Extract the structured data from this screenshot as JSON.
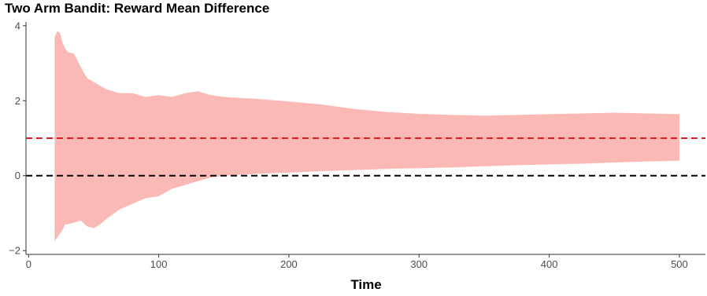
{
  "chart_data": {
    "type": "area",
    "title": "Two Arm Bandit: Reward Mean Difference",
    "xlabel": "Time",
    "ylabel": "",
    "xlim": [
      -2,
      520
    ],
    "ylim": [
      -2.1,
      4.1
    ],
    "x_ticks": [
      0,
      100,
      200,
      300,
      400,
      500
    ],
    "y_ticks": [
      -2,
      0,
      2,
      4
    ],
    "grid": false,
    "colors": {
      "band": "#fbb9b5",
      "true_difference_line": "#e41a1c",
      "zero_line": "#000000",
      "axis": "#333333"
    },
    "reference_lines": [
      {
        "y": 1,
        "style": "dashed",
        "color": "#e41a1c"
      },
      {
        "y": 0,
        "style": "dashed",
        "color": "#000000"
      }
    ],
    "band": {
      "x": [
        20,
        22,
        24,
        26,
        28,
        30,
        35,
        40,
        45,
        50,
        55,
        60,
        70,
        80,
        90,
        100,
        110,
        120,
        130,
        140,
        150,
        175,
        200,
        225,
        250,
        275,
        300,
        325,
        350,
        375,
        400,
        425,
        450,
        475,
        500
      ],
      "upper": [
        3.7,
        3.85,
        3.82,
        3.55,
        3.4,
        3.3,
        3.25,
        2.9,
        2.6,
        2.5,
        2.4,
        2.3,
        2.2,
        2.2,
        2.1,
        2.15,
        2.1,
        2.2,
        2.25,
        2.15,
        2.1,
        2.05,
        1.98,
        1.9,
        1.78,
        1.7,
        1.65,
        1.62,
        1.6,
        1.62,
        1.64,
        1.66,
        1.68,
        1.66,
        1.64
      ],
      "lower": [
        -1.75,
        -1.65,
        -1.55,
        -1.45,
        -1.3,
        -1.3,
        -1.25,
        -1.2,
        -1.35,
        -1.4,
        -1.3,
        -1.15,
        -0.9,
        -0.75,
        -0.6,
        -0.55,
        -0.35,
        -0.25,
        -0.15,
        -0.05,
        0.0,
        0.05,
        0.08,
        0.12,
        0.15,
        0.18,
        0.2,
        0.22,
        0.25,
        0.28,
        0.3,
        0.32,
        0.35,
        0.38,
        0.4
      ]
    }
  }
}
